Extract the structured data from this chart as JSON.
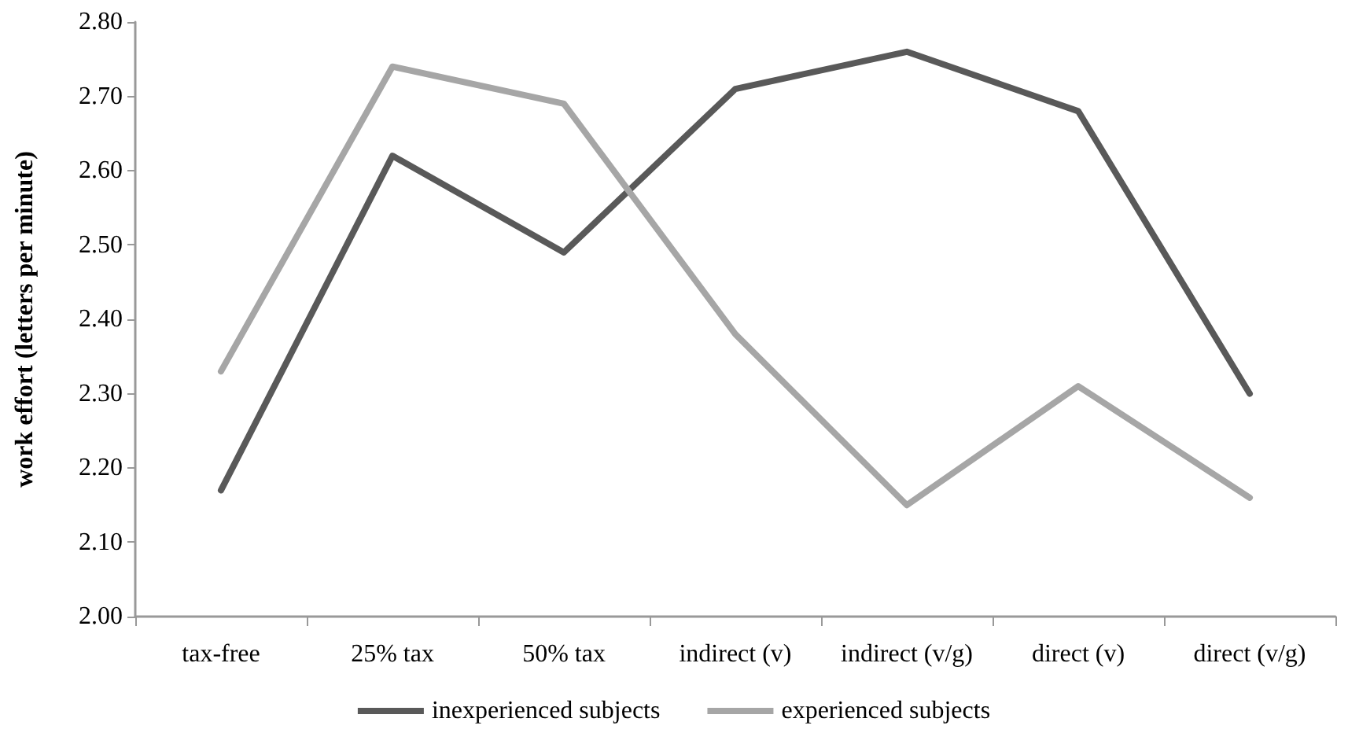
{
  "chart_data": {
    "type": "line",
    "ylabel": "work effort (letters per minute)",
    "categories": [
      "tax-free",
      "25% tax",
      "50% tax",
      "indirect (v)",
      "indirect (v/g)",
      "direct (v)",
      "direct (v/g)"
    ],
    "series": [
      {
        "name": "inexperienced subjects",
        "color": "#595959",
        "values": [
          2.17,
          2.62,
          2.49,
          2.71,
          2.76,
          2.68,
          2.3
        ]
      },
      {
        "name": "experienced subjects",
        "color": "#a6a6a6",
        "values": [
          2.33,
          2.74,
          2.69,
          2.38,
          2.15,
          2.31,
          2.16
        ]
      }
    ],
    "ylim": [
      2.0,
      2.8
    ],
    "yticks": [
      {
        "value": 2.0,
        "label": "2.00"
      },
      {
        "value": 2.1,
        "label": "2.10"
      },
      {
        "value": 2.2,
        "label": "2.20"
      },
      {
        "value": 2.3,
        "label": "2.30"
      },
      {
        "value": 2.4,
        "label": "2.40"
      },
      {
        "value": 2.5,
        "label": "2.50"
      },
      {
        "value": 2.6,
        "label": "2.60"
      },
      {
        "value": 2.7,
        "label": "2.70"
      },
      {
        "value": 2.8,
        "label": "2.80"
      }
    ],
    "grid": false,
    "legend": "bottom",
    "marker": "none",
    "line_style": "solid"
  }
}
